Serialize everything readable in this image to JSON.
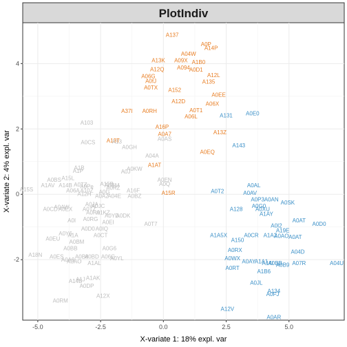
{
  "chart_data": {
    "type": "scatter",
    "title": "PlotIndiv",
    "xlabel": "X-variate 1: 18% expl. var",
    "ylabel": "X-variate 2: 4% expl. var",
    "xlim": [
      -5.6,
      7.2
    ],
    "ylim": [
      -3.85,
      5.25
    ],
    "x_ticks": [
      -5.0,
      -2.5,
      0.0,
      2.5,
      5.0
    ],
    "y_ticks": [
      -2,
      0,
      2,
      4
    ],
    "grid": true,
    "colors": {
      "orange": "#e87d22",
      "blue": "#3a8fc7",
      "grey": "#bdbdbd"
    },
    "series": [
      {
        "color": "orange",
        "points": [
          {
            "label": "A137",
            "x": 0.35,
            "y": 4.88
          },
          {
            "label": "A0P",
            "x": 1.7,
            "y": 4.6
          },
          {
            "label": "A14P",
            "x": 1.9,
            "y": 4.48
          },
          {
            "label": "A04W",
            "x": 1.0,
            "y": 4.3
          },
          {
            "label": "A13K",
            "x": -0.2,
            "y": 4.1
          },
          {
            "label": "A09X",
            "x": 0.7,
            "y": 4.1
          },
          {
            "label": "A1B0",
            "x": 1.4,
            "y": 4.05
          },
          {
            "label": "A12Q",
            "x": -0.25,
            "y": 3.83
          },
          {
            "label": "A094",
            "x": 0.8,
            "y": 3.88
          },
          {
            "label": "A0D1",
            "x": 1.3,
            "y": 3.82
          },
          {
            "label": "A06G",
            "x": -0.6,
            "y": 3.62
          },
          {
            "label": "A12L",
            "x": 2.0,
            "y": 3.65
          },
          {
            "label": "A0fJ",
            "x": -0.5,
            "y": 3.47
          },
          {
            "label": "A135",
            "x": 1.8,
            "y": 3.45
          },
          {
            "label": "A0TX",
            "x": -0.5,
            "y": 3.27
          },
          {
            "label": "A152",
            "x": 0.45,
            "y": 3.2
          },
          {
            "label": "A0EE",
            "x": 2.2,
            "y": 3.05
          },
          {
            "label": "A12D",
            "x": 0.6,
            "y": 2.85
          },
          {
            "label": "A06X",
            "x": 1.95,
            "y": 2.78
          },
          {
            "label": "A37I",
            "x": -1.45,
            "y": 2.55
          },
          {
            "label": "A0RH",
            "x": -0.55,
            "y": 2.55
          },
          {
            "label": "A0T1",
            "x": 1.3,
            "y": 2.58
          },
          {
            "label": "A06L",
            "x": 1.1,
            "y": 2.38
          },
          {
            "label": "A16P",
            "x": -0.05,
            "y": 2.07
          },
          {
            "label": "A0A7",
            "x": 0.05,
            "y": 1.85
          },
          {
            "label": "A13Z",
            "x": 2.25,
            "y": 1.9
          },
          {
            "label": "A13T",
            "x": -2.0,
            "y": 1.65
          },
          {
            "label": "A0EQ",
            "x": 1.75,
            "y": 1.3
          },
          {
            "label": "A1AT",
            "x": -0.35,
            "y": 0.9
          },
          {
            "label": "A15R",
            "x": 0.2,
            "y": 0.05
          }
        ]
      },
      {
        "color": "blue",
        "points": [
          {
            "label": "A131",
            "x": 2.5,
            "y": 2.42
          },
          {
            "label": "A0E0",
            "x": 3.55,
            "y": 2.48
          },
          {
            "label": "A143",
            "x": 3.0,
            "y": 1.5
          },
          {
            "label": "A0AL",
            "x": 3.6,
            "y": 0.28
          },
          {
            "label": "A0T2",
            "x": 2.15,
            "y": 0.1
          },
          {
            "label": "A0AV",
            "x": 3.45,
            "y": 0.05
          },
          {
            "label": "A0P3",
            "x": 3.75,
            "y": -0.15
          },
          {
            "label": "A0AN",
            "x": 4.3,
            "y": -0.15
          },
          {
            "label": "A0SK",
            "x": 4.95,
            "y": -0.25
          },
          {
            "label": "A0G0",
            "x": 3.8,
            "y": -0.35
          },
          {
            "label": "A128",
            "x": 2.9,
            "y": -0.45
          },
          {
            "label": "A0XU",
            "x": 3.95,
            "y": -0.45
          },
          {
            "label": "A1AY",
            "x": 4.1,
            "y": -0.6
          },
          {
            "label": "A0AT",
            "x": 5.4,
            "y": -0.8
          },
          {
            "label": "A0D0",
            "x": 6.2,
            "y": -0.9
          },
          {
            "label": "A0I2",
            "x": 4.5,
            "y": -0.95
          },
          {
            "label": "A19E",
            "x": 4.75,
            "y": -1.1
          },
          {
            "label": "A1A5X",
            "x": 2.2,
            "y": -1.25
          },
          {
            "label": "A0CR",
            "x": 3.5,
            "y": -1.25
          },
          {
            "label": "A1A2",
            "x": 4.25,
            "y": -1.25
          },
          {
            "label": "A0AO",
            "x": 4.7,
            "y": -1.27
          },
          {
            "label": "A0AT",
            "x": 5.25,
            "y": -1.3
          },
          {
            "label": "A150",
            "x": 2.95,
            "y": -1.4
          },
          {
            "label": "A0RX",
            "x": 2.85,
            "y": -1.7
          },
          {
            "label": "A04D",
            "x": 5.35,
            "y": -1.75
          },
          {
            "label": "A0WX",
            "x": 2.75,
            "y": -1.95
          },
          {
            "label": "A0AY",
            "x": 3.4,
            "y": -2.05
          },
          {
            "label": "A1A1",
            "x": 3.9,
            "y": -2.05
          },
          {
            "label": "A14I",
            "x": 4.15,
            "y": -2.1
          },
          {
            "label": "A0BB",
            "x": 4.45,
            "y": -2.1
          },
          {
            "label": "A0B9",
            "x": 4.75,
            "y": -2.15
          },
          {
            "label": "A07R",
            "x": 5.4,
            "y": -2.1
          },
          {
            "label": "A04U",
            "x": 6.9,
            "y": -2.1
          },
          {
            "label": "A0RT",
            "x": 2.75,
            "y": -2.25
          },
          {
            "label": "A1B6",
            "x": 4.0,
            "y": -2.35
          },
          {
            "label": "A0JL",
            "x": 3.7,
            "y": -2.7
          },
          {
            "label": "A134",
            "x": 4.4,
            "y": -2.95
          },
          {
            "label": "A0FJ",
            "x": 4.35,
            "y": -3.05
          },
          {
            "label": "A12V",
            "x": 2.55,
            "y": -3.5
          },
          {
            "label": "A0AR",
            "x": 4.4,
            "y": -3.75
          }
        ]
      },
      {
        "color": "grey",
        "points": [
          {
            "label": "A103",
            "x": -3.05,
            "y": 2.2
          },
          {
            "label": "A0CS",
            "x": -3.0,
            "y": 1.6
          },
          {
            "label": "A13",
            "x": -1.85,
            "y": 1.62
          },
          {
            "label": "A0AS",
            "x": 0.05,
            "y": 1.7
          },
          {
            "label": "A0GH",
            "x": -1.35,
            "y": 1.45
          },
          {
            "label": "A04A",
            "x": -0.45,
            "y": 1.18
          },
          {
            "label": "A1B",
            "x": -3.35,
            "y": 0.82
          },
          {
            "label": "A1P",
            "x": -3.4,
            "y": 0.72
          },
          {
            "label": "A0KW",
            "x": -1.15,
            "y": 0.78
          },
          {
            "label": "A0J",
            "x": -1.5,
            "y": 0.7
          },
          {
            "label": "A15L",
            "x": -3.8,
            "y": 0.5
          },
          {
            "label": "A0BS",
            "x": -4.35,
            "y": 0.45
          },
          {
            "label": "A0EN",
            "x": 0.05,
            "y": 0.45
          },
          {
            "label": "A0Q",
            "x": 0.05,
            "y": 0.32
          },
          {
            "label": "A1AV",
            "x": -4.6,
            "y": 0.28
          },
          {
            "label": "A14B",
            "x": -3.9,
            "y": 0.28
          },
          {
            "label": "A0TZ",
            "x": -3.3,
            "y": 0.3
          },
          {
            "label": "A0Pe",
            "x": -3.05,
            "y": 0.25
          },
          {
            "label": "A15B",
            "x": -2.25,
            "y": 0.32
          },
          {
            "label": "A0BM",
            "x": -2.05,
            "y": 0.28
          },
          {
            "label": "A0RZ",
            "x": -2.0,
            "y": 0.2
          },
          {
            "label": "A15S",
            "x": -5.45,
            "y": 0.15
          },
          {
            "label": "A06A",
            "x": -3.6,
            "y": 0.12
          },
          {
            "label": "A10Z",
            "x": -3.05,
            "y": 0.12
          },
          {
            "label": "A0G",
            "x": -2.35,
            "y": 0.08
          },
          {
            "label": "A16F",
            "x": -1.2,
            "y": 0.12
          },
          {
            "label": "A12H",
            "x": -3.15,
            "y": 0.02
          },
          {
            "label": "A0A2",
            "x": -2.45,
            "y": -0.05
          },
          {
            "label": "A04E",
            "x": -1.95,
            "y": -0.05
          },
          {
            "label": "A0BZ",
            "x": -1.15,
            "y": -0.05
          },
          {
            "label": "A0JA",
            "x": -2.85,
            "y": -0.3
          },
          {
            "label": "A0JC",
            "x": -2.6,
            "y": -0.35
          },
          {
            "label": "A0CD",
            "x": -4.5,
            "y": -0.45
          },
          {
            "label": "A0EX",
            "x": -3.9,
            "y": -0.45
          },
          {
            "label": "A0AW",
            "x": -4.05,
            "y": -0.38
          },
          {
            "label": "A0TZ",
            "x": -2.95,
            "y": -0.45
          },
          {
            "label": "A0R9",
            "x": -2.8,
            "y": -0.55
          },
          {
            "label": "A1KZ",
            "x": -2.4,
            "y": -0.55
          },
          {
            "label": "A0YD",
            "x": -2.05,
            "y": -0.65
          },
          {
            "label": "A0DK",
            "x": -1.6,
            "y": -0.65
          },
          {
            "label": "A0I",
            "x": -3.65,
            "y": -0.8
          },
          {
            "label": "A0RG",
            "x": -2.9,
            "y": -0.75
          },
          {
            "label": "A0EI",
            "x": -2.2,
            "y": -0.85
          },
          {
            "label": "A0T7",
            "x": -0.5,
            "y": -0.9
          },
          {
            "label": "A0D0",
            "x": -3.0,
            "y": -1.05
          },
          {
            "label": "A0IQ",
            "x": -2.45,
            "y": -1.05
          },
          {
            "label": "A0Y6",
            "x": -3.9,
            "y": -1.2
          },
          {
            "label": "A1A",
            "x": -3.6,
            "y": -1.25
          },
          {
            "label": "A0CT",
            "x": -2.5,
            "y": -1.25
          },
          {
            "label": "A0EU",
            "x": -4.4,
            "y": -1.35
          },
          {
            "label": "A0BM",
            "x": -3.45,
            "y": -1.45
          },
          {
            "label": "A0BB",
            "x": -3.7,
            "y": -1.65
          },
          {
            "label": "A0G6",
            "x": -2.15,
            "y": -1.65
          },
          {
            "label": "A18N",
            "x": -5.1,
            "y": -1.85
          },
          {
            "label": "A0ES",
            "x": -4.25,
            "y": -1.9
          },
          {
            "label": "A0A9",
            "x": -3.8,
            "y": -2.0
          },
          {
            "label": "A0B8",
            "x": -3.25,
            "y": -1.9
          },
          {
            "label": "A0BD",
            "x": -2.85,
            "y": -1.9
          },
          {
            "label": "A06G",
            "x": -2.2,
            "y": -1.9
          },
          {
            "label": "A0YL",
            "x": -1.85,
            "y": -1.95
          },
          {
            "label": "A0AO",
            "x": -3.55,
            "y": -2.05
          },
          {
            "label": "A1AL",
            "x": -2.75,
            "y": -2.1
          },
          {
            "label": "A1AK",
            "x": -2.8,
            "y": -2.55
          },
          {
            "label": "A14B",
            "x": -3.5,
            "y": -2.65
          },
          {
            "label": "A1J",
            "x": -3.3,
            "y": -2.6
          },
          {
            "label": "A0DP",
            "x": -3.05,
            "y": -2.8
          },
          {
            "label": "A12X",
            "x": -2.4,
            "y": -3.1
          },
          {
            "label": "A0RM",
            "x": -4.1,
            "y": -3.25
          }
        ]
      }
    ]
  }
}
